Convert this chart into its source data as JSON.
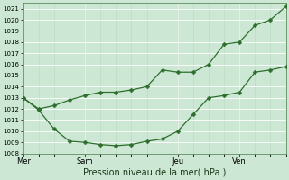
{
  "xlabel": "Pression niveau de la mer( hPa )",
  "ylim": [
    1008,
    1021.5
  ],
  "yticks": [
    1008,
    1009,
    1010,
    1011,
    1012,
    1013,
    1014,
    1015,
    1016,
    1017,
    1018,
    1019,
    1020,
    1021
  ],
  "bg_color": "#cce8d4",
  "grid_color": "#ffffff",
  "grid_minor_color": "#b8d8c0",
  "line_color": "#2d6e2d",
  "day_labels": [
    "Mer",
    "Sam",
    "Jeu",
    "Ven"
  ],
  "day_positions": [
    0,
    4,
    10,
    14
  ],
  "line1_x": [
    0,
    1,
    2,
    3,
    4,
    5,
    6,
    7,
    8,
    9,
    10,
    11,
    12,
    13,
    14,
    15,
    16,
    17
  ],
  "line1_y": [
    1013.0,
    1011.9,
    1010.2,
    1009.1,
    1009.0,
    1008.8,
    1008.7,
    1008.8,
    1009.1,
    1009.3,
    1010.0,
    1011.5,
    1013.0,
    1013.2,
    1013.5,
    1015.3,
    1015.5,
    1015.8
  ],
  "line2_x": [
    0,
    1,
    2,
    3,
    4,
    5,
    6,
    7,
    8,
    9,
    10,
    11,
    12,
    13,
    14,
    15,
    16,
    17
  ],
  "line2_y": [
    1013.0,
    1012.0,
    1012.3,
    1012.8,
    1013.2,
    1013.5,
    1013.5,
    1013.7,
    1014.0,
    1015.5,
    1015.3,
    1015.3,
    1016.0,
    1017.8,
    1018.0,
    1019.5,
    1020.0,
    1021.2
  ],
  "xlim": [
    0,
    17
  ],
  "marker": "D",
  "marker_size": 2.5,
  "linewidth": 0.9
}
